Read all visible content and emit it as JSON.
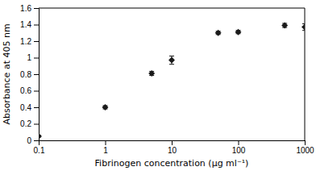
{
  "chart_data": {
    "type": "scatter",
    "xlabel": "Fibrinogen concentration (μg ml⁻¹)",
    "ylabel": "Absorbance at 405 nm",
    "x": [
      0.1,
      1,
      5,
      10,
      50,
      100,
      500,
      1000
    ],
    "values": [
      0.05,
      0.4,
      0.81,
      0.97,
      1.3,
      1.31,
      1.39,
      1.37
    ],
    "errors": [
      0.01,
      0.02,
      0.025,
      0.05,
      0.02,
      0.02,
      0.025,
      0.04
    ],
    "marker": "diamond",
    "color": "#1a1a1a",
    "log": "x",
    "grid": false,
    "xlim": [
      0.1,
      1000
    ],
    "ylim": [
      0,
      1.6
    ],
    "xticks": [
      0.1,
      1,
      10,
      100,
      1000
    ],
    "yticks": [
      0,
      0.2,
      0.4,
      0.6,
      0.8,
      1,
      1.2,
      1.4,
      1.6
    ]
  }
}
